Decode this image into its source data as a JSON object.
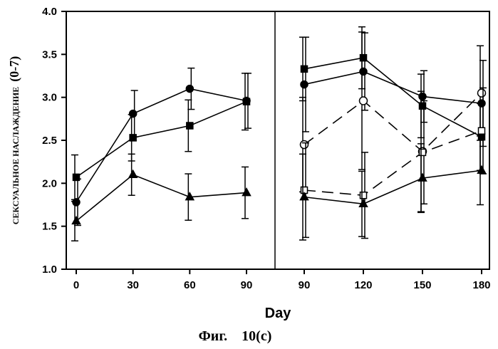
{
  "chart_data": {
    "type": "line",
    "xlabel": "Day",
    "ylabel": "СЕКСУАЛЬНОЕ НАСЛАЖДЕНИЕ",
    "ylabel_unit": "(0-7)",
    "caption": "Фиг.    10(c)",
    "ylim": [
      1.0,
      4.0
    ],
    "yticks": [
      "1.0",
      "1.5",
      "2.0",
      "2.5",
      "3.0",
      "3.5",
      "4.0"
    ],
    "grid": false,
    "panels": [
      {
        "x": [
          0,
          30,
          60,
          90
        ],
        "xticks": [
          "0",
          "30",
          "60",
          "90"
        ],
        "series": [
          {
            "marker": "filled-square",
            "dashed": false,
            "values": [
              2.07,
              2.53,
              2.67,
              2.95
            ],
            "errors": [
              0.26,
              0.27,
              0.3,
              0.33
            ]
          },
          {
            "marker": "filled-circle",
            "dashed": false,
            "values": [
              1.78,
              2.81,
              3.1,
              2.96
            ],
            "errors": [
              0.27,
              0.27,
              0.24,
              0.32
            ]
          },
          {
            "marker": "filled-triangle",
            "dashed": false,
            "values": [
              1.56,
              2.1,
              1.84,
              1.89
            ],
            "errors": [
              0.23,
              0.24,
              0.27,
              0.3
            ]
          }
        ]
      },
      {
        "x": [
          90,
          120,
          150,
          180
        ],
        "xticks": [
          "90",
          "120",
          "150",
          "180"
        ],
        "series": [
          {
            "marker": "filled-square",
            "dashed": false,
            "values": [
              3.33,
              3.46,
              2.9,
              2.54
            ],
            "errors": [
              0.37,
              0.36,
              0.37,
              0.39
            ]
          },
          {
            "marker": "filled-circle",
            "dashed": false,
            "values": [
              3.15,
              3.3,
              3.01,
              2.93
            ],
            "errors": [
              0.55,
              0.45,
              0.3,
              0.5
            ]
          },
          {
            "marker": "open-circle",
            "dashed": true,
            "values": [
              2.45,
              2.96,
              2.37,
              3.05
            ],
            "errors": [
              0.55,
              0.8,
              0.7,
              0.55
            ]
          },
          {
            "marker": "open-square",
            "dashed": true,
            "values": [
              1.92,
              1.86,
              2.36,
              2.61
            ],
            "errors": [
              0.55,
              0.5,
              0.6,
              0.5
            ]
          },
          {
            "marker": "filled-triangle",
            "dashed": false,
            "values": [
              1.84,
              1.76,
              2.06,
              2.15
            ],
            "errors": [
              0.5,
              0.38,
              0.4,
              0.4
            ]
          }
        ]
      }
    ]
  }
}
